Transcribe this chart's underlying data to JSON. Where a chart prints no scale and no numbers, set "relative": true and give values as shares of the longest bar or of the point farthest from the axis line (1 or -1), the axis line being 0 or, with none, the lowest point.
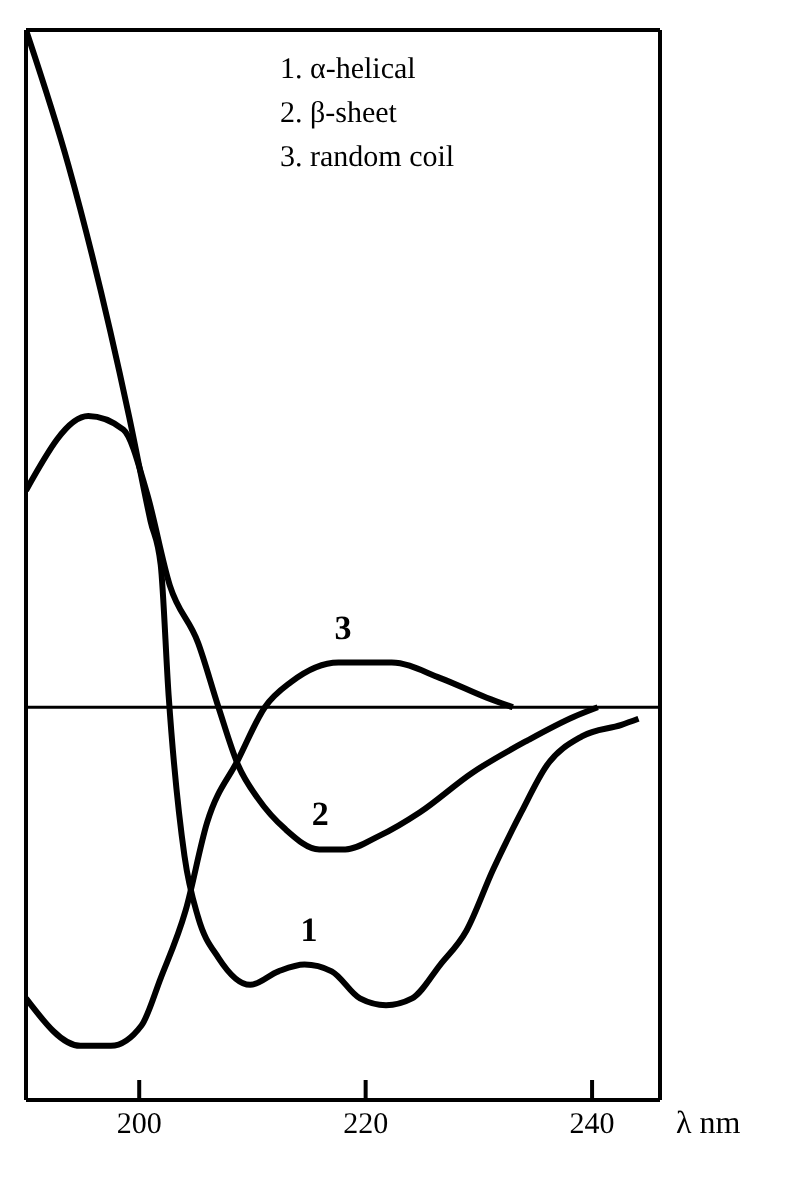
{
  "chart_data": {
    "type": "line",
    "relative": true,
    "xlabel": "λ nm",
    "xlim": [
      190,
      246
    ],
    "xticks": [
      200,
      220,
      240
    ],
    "series": [
      {
        "color": "#000000",
        "x": [
          190,
          193.75,
          199.1,
          201,
          201.9,
          202.6,
          204,
          205.2,
          207,
          209.8,
          212.3,
          214.6,
          217,
          219.5,
          221.8,
          224.1,
          226.6,
          228.9,
          231.25,
          233.75,
          236,
          239.1,
          242.6,
          244.1
        ],
        "values": [
          1.0,
          0.8,
          0.43,
          0.275,
          0.21,
          0.017,
          -0.22,
          -0.31,
          -0.37,
          -0.41,
          -0.39,
          -0.38,
          -0.39,
          -0.43,
          -0.44,
          -0.43,
          -0.38,
          -0.33,
          -0.24,
          -0.155,
          -0.086,
          -0.043,
          -0.026,
          -0.017
        ]
      },
      {
        "color": "#000000",
        "x": [
          190,
          195.5,
          198.6,
          200.7,
          202.7,
          205.2,
          207,
          208.75,
          210.5,
          212.9,
          215.9,
          218.2,
          221.2,
          224.8,
          229.4,
          234.3,
          238.4,
          240.5
        ],
        "values": [
          0.32,
          0.43,
          0.41,
          0.315,
          0.18,
          0.095,
          0,
          -0.086,
          -0.135,
          -0.18,
          -0.21,
          -0.21,
          -0.19,
          -0.155,
          -0.097,
          -0.049,
          -0.014,
          0
        ]
      },
      {
        "color": "#000000",
        "x": [
          190,
          194.8,
          197.5,
          200.2,
          201.9,
          204.1,
          206,
          208.75,
          211.1,
          213.4,
          217.6,
          222.3,
          226.6,
          230.7,
          233
        ],
        "values": [
          -0.43,
          -0.5,
          -0.5,
          -0.47,
          -0.4,
          -0.3,
          -0.17,
          -0.077,
          0,
          0.037,
          0.066,
          0.066,
          0.043,
          0.014,
          0
        ]
      }
    ],
    "ref_lines": [
      {
        "axis": "y",
        "value": 0,
        "color": "#000000"
      }
    ],
    "annotations": [
      "1. α-helical",
      "2. β-sheet",
      "3. random coil",
      {
        "text": "1",
        "x": 215,
        "y": -0.38
      },
      {
        "text": "2",
        "x": 216,
        "y": -0.21
      },
      {
        "text": "3",
        "x": 218,
        "y": 0.066
      }
    ]
  }
}
